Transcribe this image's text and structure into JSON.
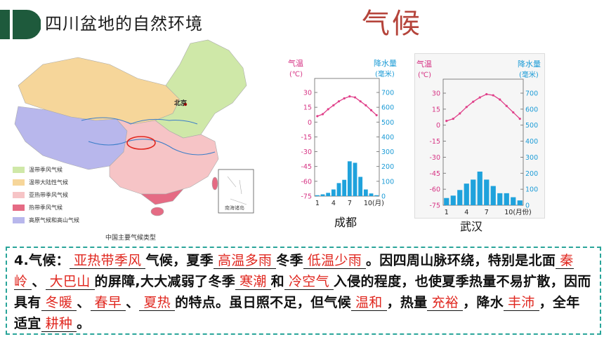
{
  "header": {
    "title": "四川盆地的自然环境",
    "section": "气候"
  },
  "map": {
    "caption": "中国主要气候类型",
    "beijing": "北京",
    "inset": "南海诸岛",
    "legend": [
      {
        "label": "温带季风气候",
        "color": "#cfe8a8"
      },
      {
        "label": "温带大陆性气候",
        "color": "#f6d69a"
      },
      {
        "label": "亚热带季风气候",
        "color": "#f6c4c6"
      },
      {
        "label": "热带季风气候",
        "color": "#e56b84"
      },
      {
        "label": "高原气候和高山气候",
        "color": "#b8b7ec"
      }
    ]
  },
  "chart_data": [
    {
      "type": "bar",
      "city": "成都",
      "left_axis_label_1": "气温",
      "left_axis_label_2": "(℃)",
      "right_axis_label_1": "降水量",
      "right_axis_label_2": "(毫米)",
      "left_ticks": [
        "30",
        "15",
        "0",
        "-15",
        "-30",
        "-45",
        "-60",
        "-75"
      ],
      "right_ticks": [
        "700",
        "600",
        "500",
        "400",
        "300",
        "200",
        "100",
        "0"
      ],
      "x_ticks": [
        "1",
        "4",
        "7",
        "10(月)"
      ],
      "temperature": [
        6,
        8,
        13,
        17,
        21,
        24,
        26,
        25,
        21,
        17,
        12,
        7
      ],
      "precipitation": [
        6,
        12,
        22,
        45,
        88,
        110,
        235,
        225,
        130,
        45,
        18,
        6
      ]
    },
    {
      "type": "bar",
      "city": "武汉",
      "left_axis_label_1": "气温",
      "left_axis_label_2": "(℃)",
      "right_axis_label_1": "降水量",
      "right_axis_label_2": "(毫米)",
      "left_ticks": [
        "30",
        "15",
        "0",
        "-15",
        "-30",
        "-45",
        "-60",
        "-75"
      ],
      "right_ticks": [
        "700",
        "600",
        "500",
        "400",
        "300",
        "200",
        "100",
        "0"
      ],
      "x_ticks": [
        "1",
        "4",
        "7",
        "10(月份)"
      ],
      "temperature": [
        4,
        6,
        11,
        17,
        22,
        26,
        29,
        28,
        24,
        18,
        12,
        6
      ],
      "precipitation": [
        45,
        60,
        95,
        135,
        160,
        210,
        160,
        120,
        75,
        75,
        50,
        30
      ]
    }
  ],
  "paragraph": {
    "s1": "4.气候：",
    "b1": "亚热带季风",
    "s2": "气候，夏季",
    "b2": "高温多雨",
    "s3": "冬季",
    "b3": "低温少雨",
    "s4": "。因四周山脉环绕，特别是北面",
    "b4": "秦岭",
    "s5": "、",
    "b5": "大巴山",
    "s6": "的屏障,大大减弱了冬季",
    "b6": "寒潮",
    "s7": "和",
    "b7": "冷空气",
    "s8": "入侵的程度，也使夏季热量不易扩散，因而具有",
    "b8": "冬暖",
    "s9": "、",
    "b9": "春早",
    "s10": "、",
    "b10": "夏热",
    "s11": "的特点。虽日照不足，但气候",
    "b11": "温和",
    "s12": "，热量",
    "b12": "充裕",
    "s13": "，降水",
    "b13": "丰沛",
    "s14": "，全年适宜",
    "b14": "耕种",
    "s15": "。"
  }
}
